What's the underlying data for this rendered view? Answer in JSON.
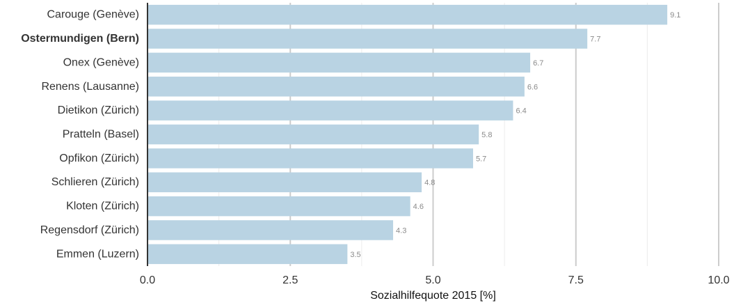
{
  "chart_data": {
    "type": "bar",
    "orientation": "horizontal",
    "categories": [
      "Carouge (Genève)",
      "Ostermundigen (Bern)",
      "Onex (Genève)",
      "Renens (Lausanne)",
      "Dietikon (Zürich)",
      "Pratteln (Basel)",
      "Opfikon (Zürich)",
      "Schlieren (Zürich)",
      "Kloten (Zürich)",
      "Regensdorf (Zürich)",
      "Emmen (Luzern)"
    ],
    "values": [
      9.1,
      7.7,
      6.7,
      6.6,
      6.4,
      5.8,
      5.7,
      4.8,
      4.6,
      4.3,
      3.5
    ],
    "value_labels": [
      "9.1",
      "7.7",
      "6.7",
      "6.6",
      "6.4",
      "5.8",
      "5.7",
      "4.8",
      "4.6",
      "4.3",
      "3.5"
    ],
    "highlight_category": "Ostermundigen (Bern)",
    "xlabel": "Sozialhilfequote 2015 [%]",
    "xlim": [
      0,
      10
    ],
    "x_ticks": [
      0,
      2.5,
      5,
      7.5,
      10
    ],
    "x_tick_labels": [
      "0.0",
      "2.5",
      "5.0",
      "7.5",
      "10.0"
    ],
    "grid": true,
    "colors": {
      "bar": "#b9d3e3",
      "major_grid": "#cccccc",
      "minor_grid": "#ececec",
      "axis": "#333333"
    }
  }
}
